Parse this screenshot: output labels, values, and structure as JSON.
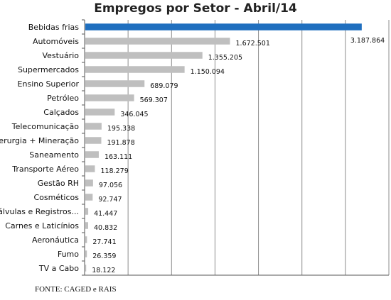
{
  "chart_data": {
    "type": "bar",
    "orientation": "horizontal",
    "title": "Empregos por Setor - Abril/14",
    "categories": [
      "Bebidas frias",
      "Automóveis",
      "Vestuário",
      "Supermercados",
      "Ensino Superior",
      "Petróleo",
      "Calçados",
      "Telecomunicação",
      "Siderurgia + Mineração",
      "Saneamento",
      "Transporte Aéreo",
      "Gestão RH",
      "Cosméticos",
      "Bombas, Válvulas e Registros...",
      "Carnes e Laticínios",
      "Aeronáutica",
      "Fumo",
      "TV a Cabo"
    ],
    "values": [
      3187864,
      1672501,
      1355205,
      1150094,
      689079,
      569307,
      346045,
      195338,
      191878,
      163111,
      118279,
      97056,
      92747,
      41447,
      40832,
      27741,
      26359,
      18122
    ],
    "value_labels": [
      "3.187.864",
      "1.672.501",
      "1.355.205",
      "1.150.094",
      "689.079",
      "569.307",
      "346.045",
      "195.338",
      "191.878",
      "163.111",
      "118.279",
      "97.056",
      "92.747",
      "41.447",
      "40.832",
      "27.741",
      "26.359",
      "18.122"
    ],
    "xlim": [
      0,
      3500000
    ],
    "grid": true,
    "colors": {
      "highlight": "#1f6fbf",
      "bar": "#bfbfbf",
      "grid": "#8c8c8c",
      "axis": "#555555"
    }
  },
  "source_note": "FONTE: CAGED e RAIS"
}
